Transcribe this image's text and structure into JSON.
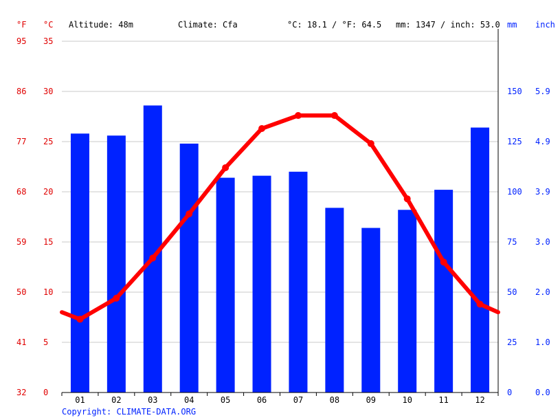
{
  "header": {
    "unit_f": "°F",
    "unit_c": "°C",
    "altitude": "Altitude: 48m",
    "climate": "Climate: Cfa",
    "avg_temp": "°C: 18.1 / °F: 64.5",
    "precip": "mm: 1347 / inch: 53.0",
    "unit_mm": "mm",
    "unit_inch": "inch"
  },
  "copyright": "Copyright: CLIMATE-DATA.ORG",
  "colors": {
    "temperature": "#ff0000",
    "precipitation": "#0022ff",
    "grid": "#c8c8c8"
  },
  "chart_data": {
    "type": "bar",
    "categories": [
      "01",
      "02",
      "03",
      "04",
      "05",
      "06",
      "07",
      "08",
      "09",
      "10",
      "11",
      "12"
    ],
    "series": [
      {
        "type": "bar",
        "axis": "right",
        "unit": "mm",
        "values": [
          129,
          128,
          143,
          124,
          107,
          108,
          110,
          92,
          82,
          91,
          101,
          132
        ]
      },
      {
        "type": "line",
        "axis": "left",
        "unit": "°C",
        "values": [
          7.3,
          9.4,
          13.4,
          17.8,
          22.4,
          26.3,
          27.6,
          27.6,
          24.8,
          19.3,
          13.0,
          8.8
        ],
        "edge_start": 8.0,
        "edge_end": 8.0
      }
    ],
    "left_axis": {
      "ylim": [
        0,
        35
      ],
      "ticks_c": [
        0,
        5,
        10,
        15,
        20,
        25,
        30,
        35
      ],
      "ticks_f": [
        32,
        41,
        50,
        59,
        68,
        77,
        86,
        95
      ]
    },
    "right_axis": {
      "ylim": [
        0,
        175
      ],
      "ticks_mm": [
        0,
        25,
        50,
        75,
        100,
        125,
        150
      ],
      "ticks_inch": [
        "0.0",
        "1.0",
        "2.0",
        "3.0",
        "3.9",
        "4.9",
        "5.9"
      ]
    },
    "grid": true,
    "legend": "none"
  }
}
